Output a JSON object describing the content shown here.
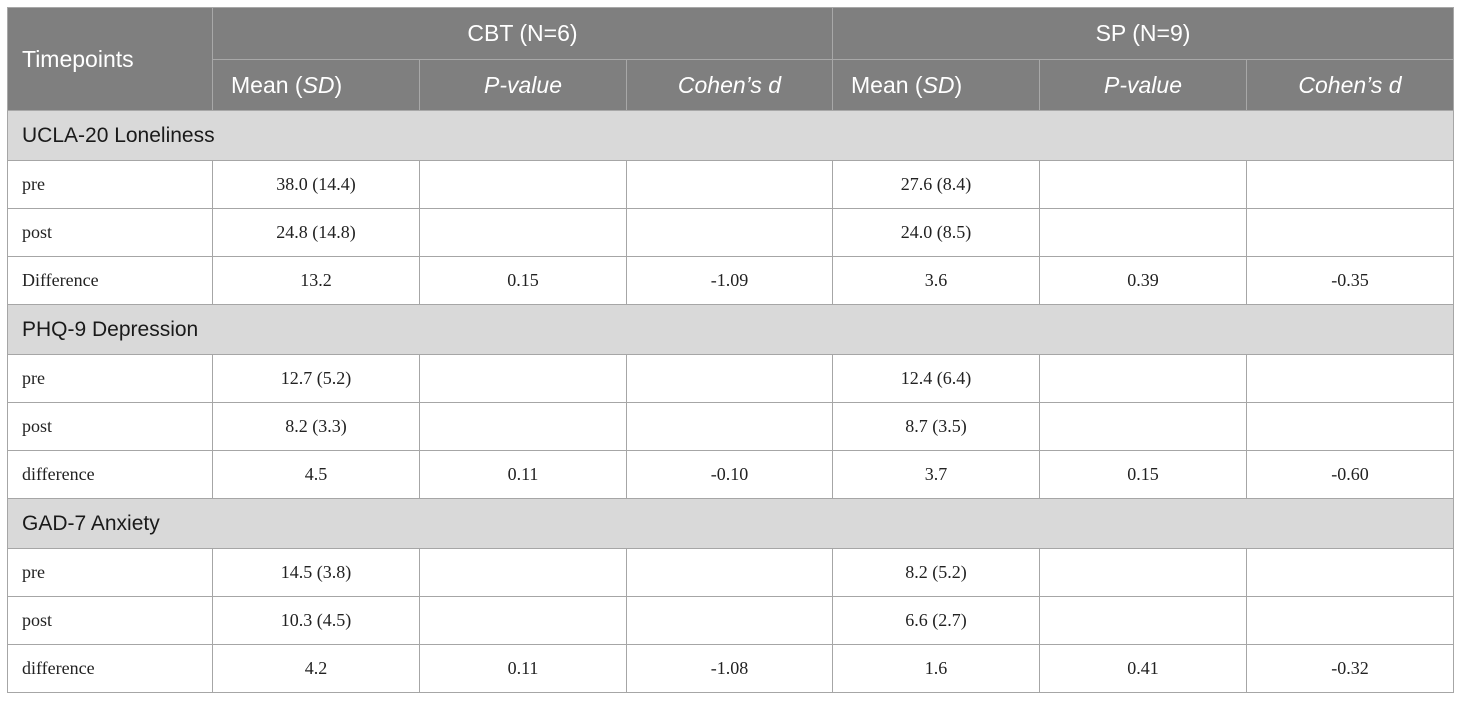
{
  "table": {
    "corner": "Timepoints",
    "groups": [
      "CBT (N=6)",
      "SP (N=9)"
    ],
    "subheaders": [
      [
        {
          "text": "Mean (",
          "italic": false
        },
        {
          "text": "SD",
          "italic": true
        },
        {
          "text": ")",
          "italic": false
        }
      ],
      [
        {
          "text": "P-value",
          "italic": true
        }
      ],
      [
        {
          "text": "Cohen’s ",
          "italic": true
        },
        {
          "text": "d",
          "italic": true
        }
      ],
      [
        {
          "text": "Mean (",
          "italic": false
        },
        {
          "text": "SD",
          "italic": true
        },
        {
          "text": ")",
          "italic": false
        }
      ],
      [
        {
          "text": "P-value",
          "italic": true
        }
      ],
      [
        {
          "text": "Cohen’s ",
          "italic": true
        },
        {
          "text": "d",
          "italic": true
        }
      ]
    ],
    "sections": [
      {
        "title": "UCLA-20 Loneliness",
        "rows": [
          [
            "pre",
            "38.0 (14.4)",
            null,
            null,
            "27.6 (8.4)",
            null,
            null
          ],
          [
            "post",
            "24.8 (14.8)",
            null,
            null,
            "24.0 (8.5)",
            null,
            null
          ],
          [
            "Difference",
            "13.2",
            "0.15",
            "-1.09",
            "3.6",
            "0.39",
            "-0.35"
          ]
        ]
      },
      {
        "title": "PHQ-9 Depression",
        "rows": [
          [
            "pre",
            "12.7 (5.2)",
            null,
            null,
            "12.4 (6.4)",
            null,
            null
          ],
          [
            "post",
            "8.2 (3.3)",
            null,
            null,
            "8.7 (3.5)",
            null,
            null
          ],
          [
            "difference",
            "4.5",
            "0.11",
            "-0.10",
            "3.7",
            "0.15",
            "-0.60"
          ]
        ]
      },
      {
        "title": "GAD-7 Anxiety",
        "rows": [
          [
            "pre",
            "14.5 (3.8)",
            null,
            null,
            "8.2 (5.2)",
            null,
            null
          ],
          [
            "post",
            "10.3 (4.5)",
            null,
            null,
            "6.6 (2.7)",
            null,
            null
          ],
          [
            "difference",
            "4.2",
            "0.11",
            "-1.08",
            "1.6",
            "0.41",
            "-0.32"
          ]
        ]
      }
    ]
  }
}
